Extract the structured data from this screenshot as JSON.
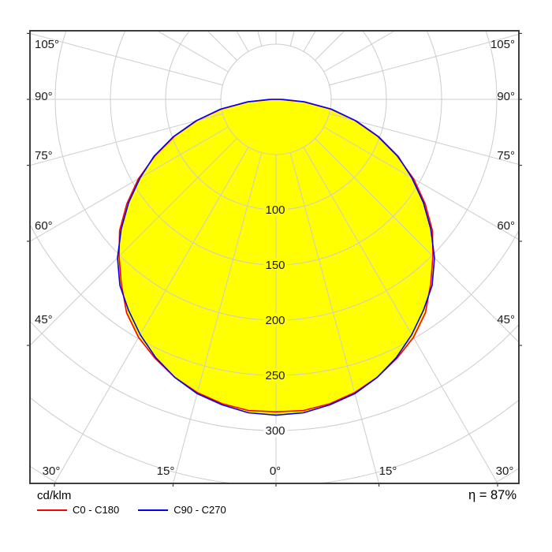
{
  "chart_data": {
    "type": "line",
    "subtype": "polar-photometric-intensity",
    "units": "cd/klm",
    "efficiency": "η = 87%",
    "fill_color": "#ffff00",
    "grid_color": "#cccccc",
    "frame_color": "#3d3d3d",
    "radial_grid_step": 50,
    "radial_max": 400,
    "angular_grid_step_deg": 15,
    "radial_tick_values": [
      100,
      150,
      200,
      250,
      300
    ],
    "radial_tick_labels": [
      "100",
      "150",
      "200",
      "250",
      "300"
    ],
    "angle_labels": {
      "left": [
        "105°",
        "90°",
        "75°",
        "60°",
        "45°"
      ],
      "right": [
        "105°",
        "90°",
        "75°",
        "60°",
        "45°"
      ],
      "bottom": [
        "30°",
        "15°",
        "0°",
        "15°",
        "30°"
      ]
    },
    "gamma_deg": [
      0,
      5,
      10,
      15,
      20,
      25,
      30,
      35,
      40,
      45,
      50,
      55,
      60,
      65,
      70,
      75,
      80,
      85,
      90
    ],
    "series": [
      {
        "name": "C0 - C180",
        "color": "#ff0000",
        "values": [
          283,
          283,
          280,
          275,
          268,
          259,
          249,
          236,
          218,
          201,
          185,
          165,
          144,
          121,
          98,
          74,
          50,
          25,
          3
        ]
      },
      {
        "name": "C90 - C270",
        "color": "#0000ff",
        "values": [
          286,
          285,
          281,
          276,
          268,
          258,
          246,
          233,
          220,
          203,
          183,
          163,
          142,
          122,
          99,
          75,
          51,
          26,
          6
        ]
      }
    ],
    "legend_position": "bottom-left"
  }
}
